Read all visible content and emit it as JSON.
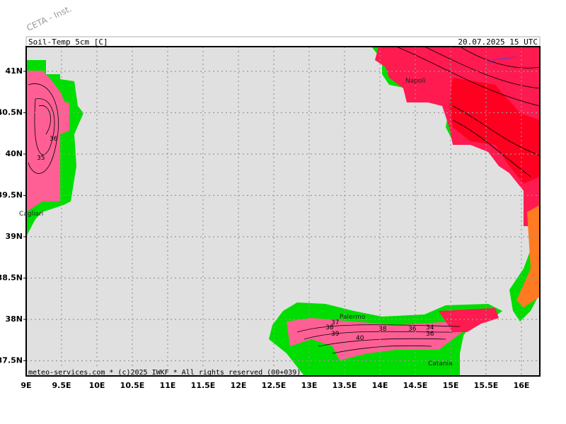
{
  "watermark": "CETA - Inst.",
  "header": {
    "title": "Soil-Temp_5cm [C]",
    "timestamp": "20.07.2025 15 UTC"
  },
  "map": {
    "lon_ticks": [
      {
        "value": 9,
        "label": "9E"
      },
      {
        "value": 9.5,
        "label": "9.5E"
      },
      {
        "value": 10,
        "label": "10E"
      },
      {
        "value": 10.5,
        "label": "10.5E"
      },
      {
        "value": 11,
        "label": "11E"
      },
      {
        "value": 11.5,
        "label": "11.5E"
      },
      {
        "value": 12,
        "label": "12E"
      },
      {
        "value": 12.5,
        "label": "12.5E"
      },
      {
        "value": 13,
        "label": "13E"
      },
      {
        "value": 13.5,
        "label": "13.5E"
      },
      {
        "value": 14,
        "label": "14E"
      },
      {
        "value": 14.5,
        "label": "14.5E"
      },
      {
        "value": 15,
        "label": "15E"
      },
      {
        "value": 15.5,
        "label": "15.5E"
      },
      {
        "value": 16,
        "label": "16E"
      }
    ],
    "lat_ticks": [
      {
        "value": 41,
        "label": "41N"
      },
      {
        "value": 40.5,
        "label": "40.5N"
      },
      {
        "value": 40,
        "label": "40N"
      },
      {
        "value": 39.5,
        "label": "39.5N"
      },
      {
        "value": 39,
        "label": "39N"
      },
      {
        "value": 38.5,
        "label": "38.5N"
      },
      {
        "value": 38,
        "label": "38N"
      },
      {
        "value": 37.5,
        "label": "37.5N"
      }
    ],
    "cities": [
      "Cagliari",
      "Napoli",
      "Palermo",
      "Catania"
    ],
    "contour_labels": [
      36,
      35,
      37,
      38,
      39,
      40,
      38,
      36,
      34,
      36
    ]
  },
  "footer": "meteo-services.com * (c)2025 IWKF * All rights reserved (00+039)"
}
